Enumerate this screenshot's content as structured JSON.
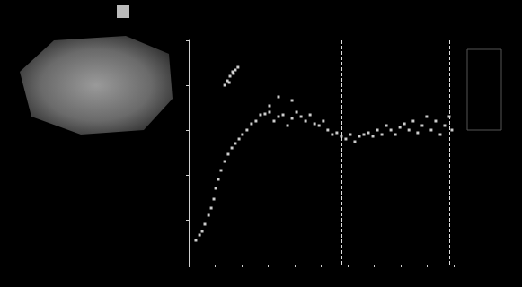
{
  "chart_data": {
    "type": "scatter",
    "x": [
      2.7,
      4.1,
      5.1,
      6.1,
      7.5,
      8.5,
      9.5,
      10.2,
      11.2,
      12.2,
      13.6,
      14.9,
      16.3,
      17.6,
      19.0,
      20.3,
      22.0,
      23.7,
      25.4,
      27.1,
      28.8,
      30.5,
      32.2,
      33.9,
      35.6,
      37.3,
      39.0,
      40.7,
      42.4,
      44.1,
      45.8,
      47.5,
      49.2,
      50.8,
      52.5,
      54.2,
      55.9,
      57.6,
      59.3,
      61.0,
      62.7,
      64.4,
      66.1,
      67.8,
      69.5,
      71.2,
      72.9,
      74.6,
      76.3,
      78.0,
      79.7,
      81.4,
      83.1,
      84.7,
      86.4,
      88.1,
      89.8,
      91.5,
      93.2,
      94.9,
      96.6,
      98.3,
      99.3,
      13.6,
      14.6,
      15.6,
      16.6,
      17.6,
      18.6,
      15.3,
      16.9,
      33.9,
      39.0,
      30.5
    ],
    "values": [
      10.8,
      13.2,
      14.8,
      18,
      22,
      25.2,
      29.2,
      34,
      38,
      42,
      46,
      49.2,
      52,
      54,
      56,
      58,
      60,
      62.8,
      64,
      66.8,
      67.2,
      68,
      64,
      66,
      66.8,
      62,
      65.2,
      68,
      66,
      64,
      66.8,
      62.8,
      62,
      64,
      60,
      58,
      58.8,
      57.2,
      56,
      58,
      54.8,
      57.2,
      58,
      58.8,
      57.2,
      60,
      58,
      62,
      60,
      58,
      61.2,
      62.8,
      60,
      64,
      58.8,
      62,
      66,
      60,
      64,
      58,
      62,
      66,
      60,
      80,
      82,
      84,
      86,
      86.8,
      88,
      81.2,
      85.2,
      74.8,
      73.2,
      70.8
    ],
    "color": "#ffffff",
    "marker": "square",
    "xlim": [
      0,
      100
    ],
    "ylim": [
      0,
      100
    ],
    "xticks": [
      0,
      10,
      20,
      30,
      40,
      50,
      60,
      70,
      80,
      90,
      100
    ],
    "yticks": [
      0,
      20,
      40,
      60,
      80,
      100
    ],
    "tick_labels": false,
    "grid": false,
    "vertical_lines": [
      57.6,
      98.3
    ]
  }
}
